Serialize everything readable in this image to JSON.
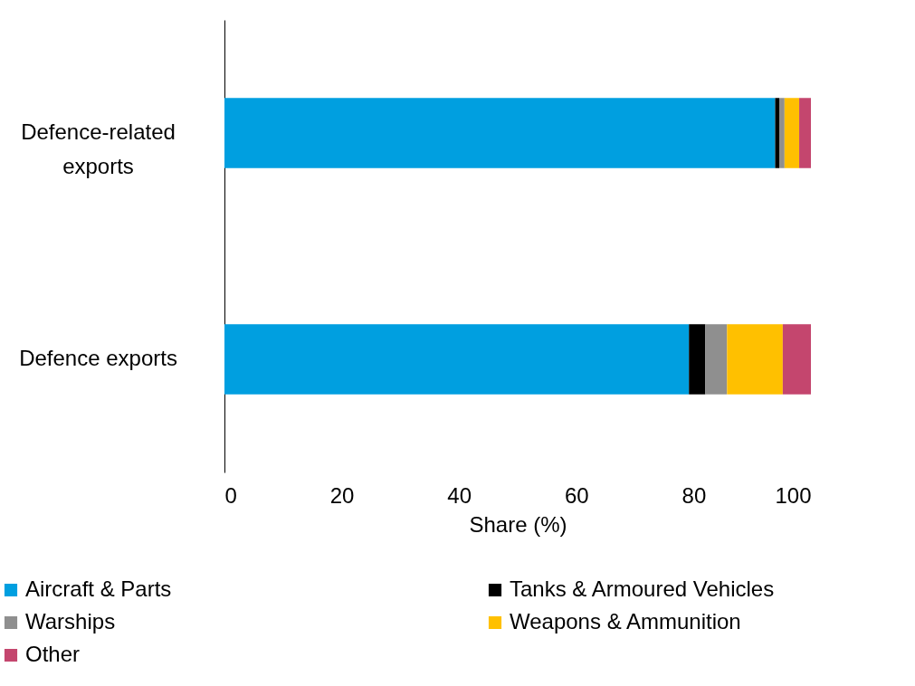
{
  "chart_data": {
    "type": "bar",
    "orientation": "horizontal",
    "stacked": true,
    "categories": [
      "Defence-related exports",
      "Defence exports"
    ],
    "series": [
      {
        "name": "Aircraft & Parts",
        "color": "#009fe0",
        "values": [
          93.9,
          79.2
        ]
      },
      {
        "name": "Tanks & Armoured Vehicles",
        "color": "#000000",
        "values": [
          0.7,
          2.8
        ]
      },
      {
        "name": "Warships",
        "color": "#8f8f8f",
        "values": [
          0.9,
          3.7
        ]
      },
      {
        "name": "Weapons & Ammunition",
        "color": "#ffc000",
        "values": [
          2.5,
          9.5
        ]
      },
      {
        "name": "Other",
        "color": "#c4466e",
        "values": [
          2.0,
          4.8
        ]
      }
    ],
    "xlim": [
      0,
      100
    ],
    "xticks": [
      0,
      20,
      40,
      60,
      80,
      100
    ],
    "xlabel": "Share (%)",
    "legend": "bottom",
    "grid": false
  }
}
